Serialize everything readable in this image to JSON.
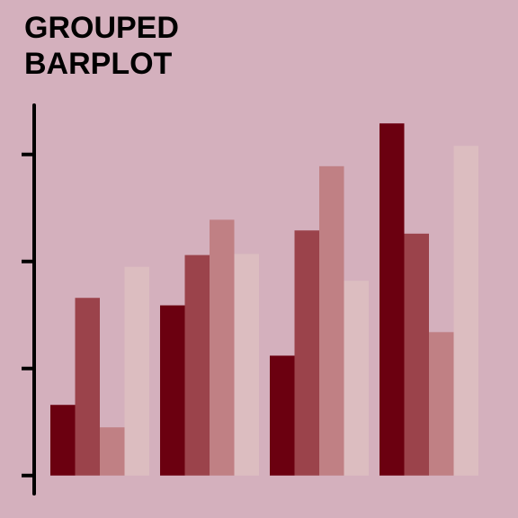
{
  "chart_data": {
    "type": "bar",
    "title": "GROUPED BARPLOT",
    "categories": [
      null,
      null,
      null,
      null
    ],
    "series": [
      {
        "color": "#6b0010",
        "values": [
          6.6,
          15.9,
          11.2,
          32.9
        ]
      },
      {
        "color": "#9b434b",
        "values": [
          16.6,
          20.6,
          22.9,
          22.6
        ]
      },
      {
        "color": "#c08084",
        "values": [
          4.5,
          23.9,
          28.9,
          13.4
        ]
      },
      {
        "color": "#dcbdc0",
        "values": [
          19.5,
          20.7,
          18.2,
          30.8
        ]
      }
    ],
    "ylim": [
      -1.7,
      34.6
    ],
    "yticks": [
      0,
      10,
      20,
      30
    ],
    "grid": false
  }
}
